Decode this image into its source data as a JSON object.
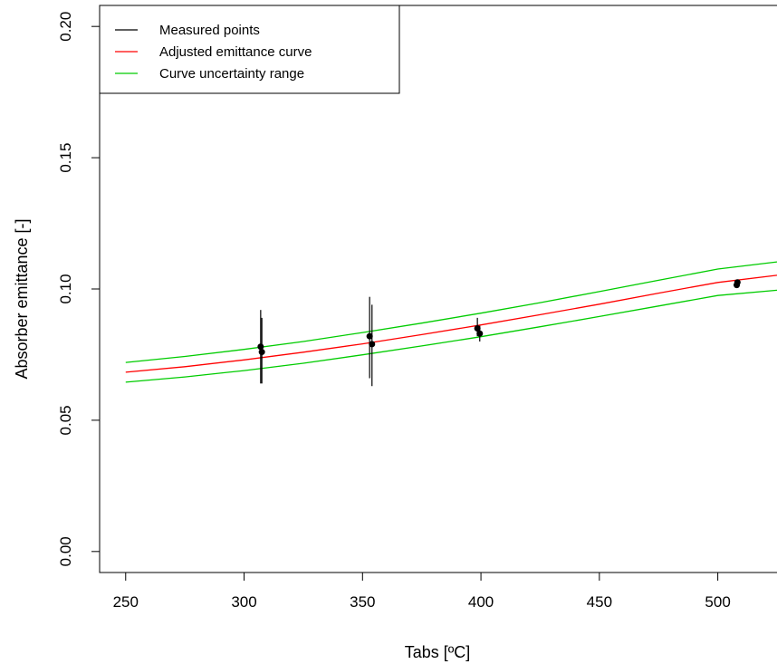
{
  "chart_data": {
    "type": "scatter",
    "xlabel": "Tabs [ºC]",
    "ylabel": "Absorber emittance [-]",
    "xlim": [
      239,
      525
    ],
    "ylim": [
      -0.008,
      0.208
    ],
    "xticks": [
      250,
      300,
      350,
      400,
      450,
      500
    ],
    "yticks": [
      0.0,
      0.05,
      0.1,
      0.15,
      0.2
    ],
    "ytick_labels": [
      "0.00",
      "0.05",
      "0.10",
      "0.15",
      "0.20"
    ],
    "grid": false,
    "legend_position": "top-left",
    "legend": [
      {
        "label": "Measured points",
        "color": "#000000"
      },
      {
        "label": "Adjusted emittance curve",
        "color": "#ff0000"
      },
      {
        "label": "Curve uncertainty range",
        "color": "#00cc00"
      }
    ],
    "measured_points": [
      {
        "x": 307,
        "y": 0.078,
        "ylo": 0.064,
        "yhi": 0.092
      },
      {
        "x": 307.5,
        "y": 0.076,
        "ylo": 0.064,
        "yhi": 0.089
      },
      {
        "x": 353,
        "y": 0.082,
        "ylo": 0.066,
        "yhi": 0.097
      },
      {
        "x": 354,
        "y": 0.079,
        "ylo": 0.063,
        "yhi": 0.094
      },
      {
        "x": 398.5,
        "y": 0.085,
        "ylo": 0.082,
        "yhi": 0.089
      },
      {
        "x": 399.5,
        "y": 0.083,
        "ylo": 0.08,
        "yhi": 0.086
      },
      {
        "x": 508,
        "y": 0.1015,
        "ylo": 0.1005,
        "yhi": 0.1025
      },
      {
        "x": 508.3,
        "y": 0.1025,
        "ylo": 0.1015,
        "yhi": 0.1035
      }
    ],
    "series": [
      {
        "color": "#ff0000",
        "x": [
          250,
          275,
          300,
          325,
          350,
          375,
          400,
          425,
          450,
          475,
          500,
          525
        ],
        "y": [
          0.0683,
          0.0704,
          0.073,
          0.0759,
          0.0791,
          0.0826,
          0.0863,
          0.0902,
          0.0942,
          0.0984,
          0.1025,
          0.1052
        ]
      },
      {
        "color": "#00cc00",
        "x": [
          250,
          275,
          300,
          325,
          350,
          375,
          400,
          425,
          450,
          475,
          500,
          525
        ],
        "y": [
          0.072,
          0.0743,
          0.077,
          0.08,
          0.0834,
          0.087,
          0.0908,
          0.0948,
          0.099,
          0.1033,
          0.1076,
          0.1103
        ]
      },
      {
        "color": "#00cc00",
        "x": [
          250,
          275,
          300,
          325,
          350,
          375,
          400,
          425,
          450,
          475,
          500,
          525
        ],
        "y": [
          0.0645,
          0.0665,
          0.0689,
          0.0717,
          0.0749,
          0.0783,
          0.0818,
          0.0856,
          0.0895,
          0.0935,
          0.0975,
          0.0995
        ]
      }
    ]
  }
}
